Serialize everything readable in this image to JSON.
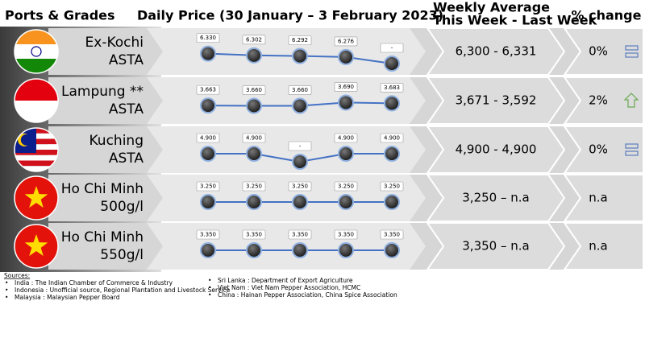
{
  "header": {
    "ports": "Ports & Grades",
    "daily": "Daily Price (30 January – 3 February 2023)",
    "weekly_line1": "Weekly Average",
    "weekly_line2": "This Week - Last Week",
    "change": "% change"
  },
  "rows": [
    {
      "port": "Ex-Kochi",
      "grade": "ASTA",
      "prices": [
        6330,
        6302,
        6292,
        6276,
        null
      ],
      "price_labels": [
        "6.330",
        "6.302",
        "6.292",
        "6.276",
        "-"
      ],
      "average": "6,300 - 6,331",
      "change": "0%"
    },
    {
      "port": "Lampung **",
      "grade": "ASTA",
      "prices": [
        3663,
        3660,
        3660,
        3690,
        3683
      ],
      "price_labels": [
        "3.663",
        "3.660",
        "3.660",
        "3.690",
        "3.683"
      ],
      "average": "3,671 - 3,592",
      "change": "2%"
    },
    {
      "port": "Kuching",
      "grade": "ASTA",
      "prices": [
        4900,
        4900,
        null,
        4900,
        4900
      ],
      "price_labels": [
        "4.900",
        "4.900",
        "-",
        "4.900",
        "4.900"
      ],
      "average": "4,900 - 4,900",
      "change": "0%"
    },
    {
      "port": "Ho Chi Minh",
      "grade": "500g/l",
      "prices": [
        3250,
        3250,
        3250,
        3250,
        3250
      ],
      "price_labels": [
        "3.250",
        "3.250",
        "3.250",
        "3.250",
        "3.250"
      ],
      "average": "3,250 – n.a",
      "change": "n.a"
    },
    {
      "port": "Ho Chi Minh",
      "grade": "550g/l",
      "prices": [
        3350,
        3350,
        3350,
        3350,
        3350
      ],
      "price_labels": [
        "3.350",
        "3.350",
        "3.350",
        "3.350",
        "3.350"
      ],
      "average": "3,350 – n.a",
      "change": "n.a"
    }
  ],
  "sources": {
    "title": "Sources:",
    "left": [
      "India : The Indian Chamber of Commerce & Industry",
      "Indonesia : Unofficial source, Regional Plantation and Livestock Service",
      "Malaysia : Malaysian Pepper Board"
    ],
    "right": [
      "Sri Lanka : Department of Export Agriculture",
      "Viet Nam : Viet Nam Pepper Association, HCMC",
      "China : Hainan Pepper Association, China Spice Association"
    ]
  }
}
